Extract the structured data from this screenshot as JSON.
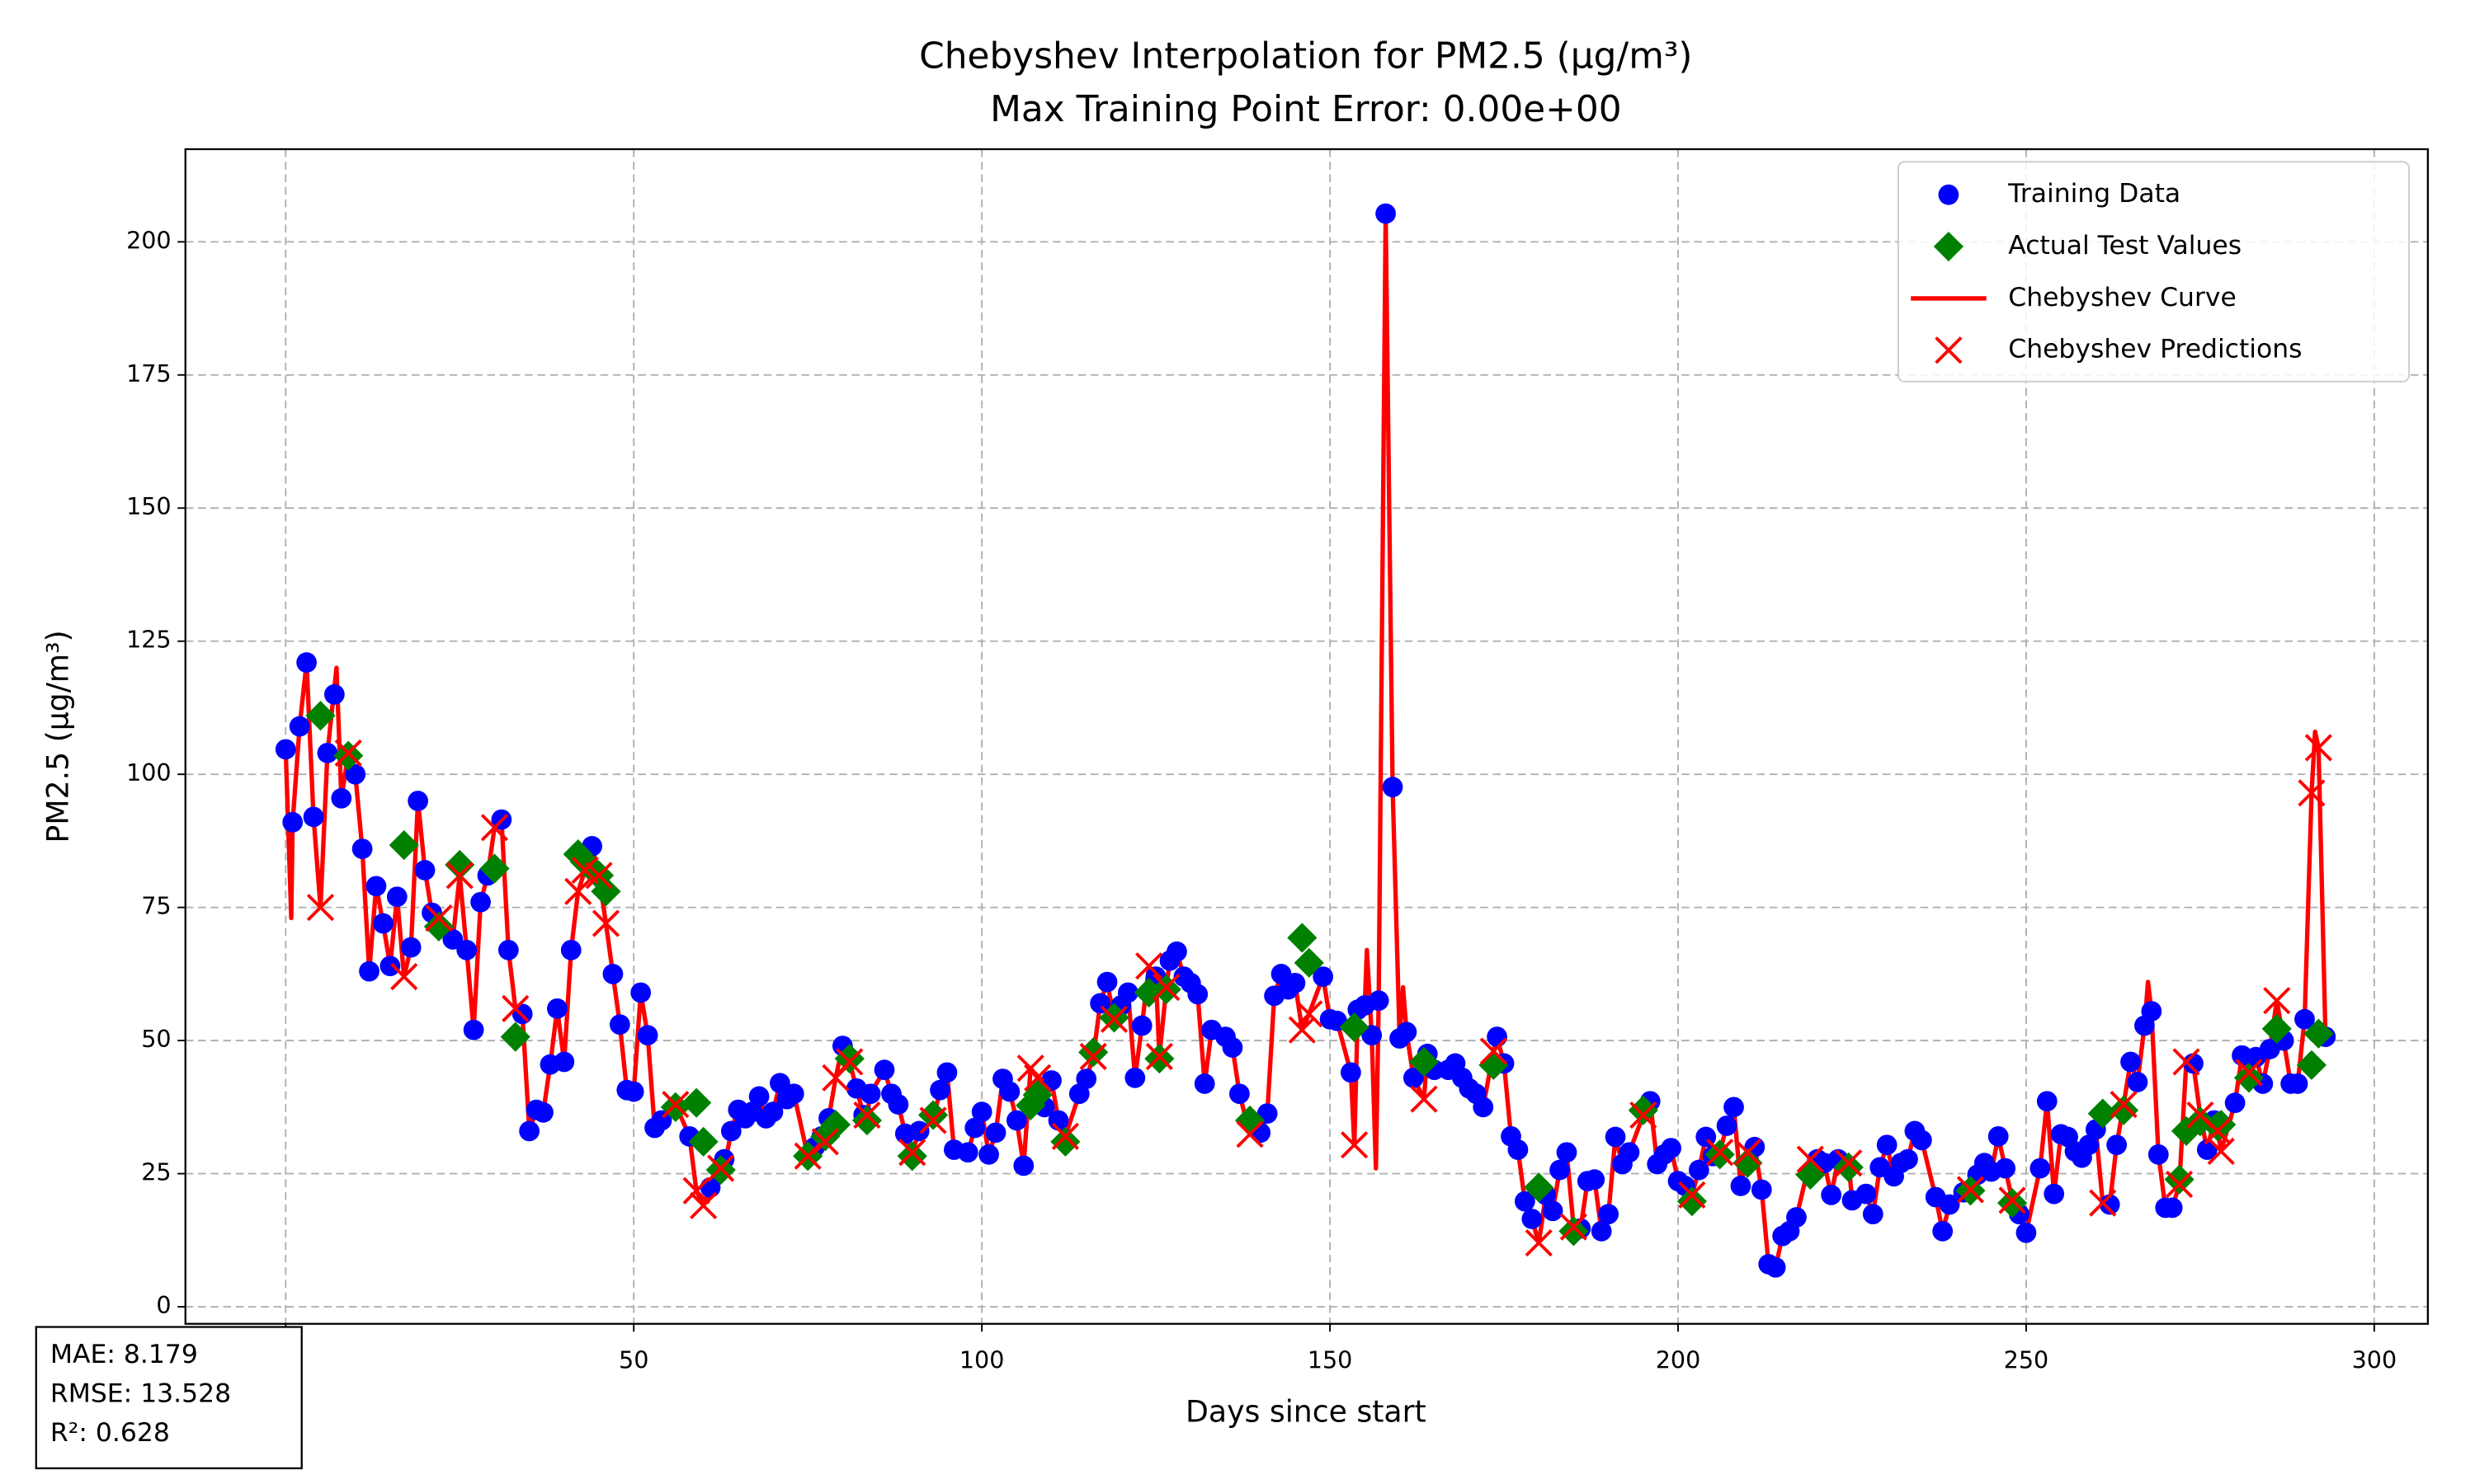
{
  "chart_data": {
    "type": "line",
    "title": "Chebyshev Interpolation for PM2.5 (µg/m³)",
    "subtitle": "Max Training Point Error: 0.00e+00",
    "x_label": "Days since start",
    "y_label": "PM2.5 (µg/m³)",
    "xlim": [
      -14.4,
      307.7
    ],
    "ylim": [
      -3.2,
      217.4
    ],
    "xticks": [
      0,
      50,
      100,
      150,
      200,
      250,
      300
    ],
    "yticks": [
      0,
      25,
      50,
      75,
      100,
      125,
      150,
      175,
      200
    ],
    "grid": true,
    "legend": "upper right",
    "annotations": [
      "MAE: 8.179",
      "RMSE: 13.528",
      "R²: 0.628"
    ],
    "series": [
      {
        "name": "Training Data",
        "color": "#0000ff",
        "marker": "o",
        "x": [
          0,
          1,
          2,
          3,
          4,
          6,
          7,
          8,
          10,
          11,
          12,
          13,
          14,
          15,
          16,
          18,
          19,
          20,
          21,
          24,
          26,
          27,
          28,
          29,
          31,
          32,
          34,
          35,
          36,
          37,
          38,
          39,
          40,
          41,
          44,
          47,
          48,
          49,
          50,
          51,
          52,
          53,
          54,
          58,
          61,
          63,
          64,
          65,
          66,
          67,
          68,
          69,
          70,
          71,
          72,
          73,
          76,
          77,
          78,
          80,
          82,
          83,
          84,
          86,
          87,
          88,
          89,
          91,
          94,
          95,
          96,
          98,
          99,
          100,
          101,
          102,
          103,
          104,
          105,
          106,
          109,
          110,
          111,
          114,
          115,
          117,
          118,
          120,
          121,
          122,
          123,
          125,
          127,
          128,
          129,
          130,
          131,
          132,
          133,
          135,
          136,
          137,
          139,
          140,
          141,
          142,
          143,
          144,
          145,
          149,
          150,
          151,
          153,
          154,
          155,
          156,
          157,
          158,
          159,
          160,
          161,
          162,
          164,
          165,
          167,
          168,
          169,
          170,
          171,
          172,
          174,
          175,
          176,
          177,
          178,
          179,
          181,
          182,
          183,
          184,
          186,
          187,
          188,
          189,
          190,
          191,
          192,
          193,
          196,
          197,
          198,
          199,
          200,
          201,
          203,
          204,
          205,
          207,
          208,
          209,
          211,
          212,
          213,
          214,
          215,
          216,
          217,
          220,
          221,
          222,
          223,
          225,
          227,
          228,
          229,
          230,
          231,
          232,
          233,
          234,
          235,
          237,
          238,
          239,
          241,
          243,
          244,
          245,
          246,
          247,
          249,
          250,
          252,
          253,
          254,
          255,
          256,
          257,
          258,
          259,
          260,
          262,
          263,
          265,
          266,
          267,
          268,
          269,
          270,
          271,
          274,
          276,
          277,
          280,
          281,
          283,
          284,
          285,
          287,
          288,
          289,
          290,
          293
        ],
        "values": [
          104.7,
          91,
          109,
          121,
          92,
          104,
          115,
          95.5,
          100,
          86,
          63,
          79,
          72,
          64,
          77,
          67.5,
          95,
          82,
          74,
          69,
          67,
          52,
          76,
          81,
          91.5,
          67,
          55,
          33,
          37,
          36.5,
          45.5,
          56,
          46,
          67,
          86.5,
          62.5,
          53,
          40.7,
          40.4,
          59,
          51,
          33.6,
          35,
          32,
          22.4,
          27.7,
          33,
          37,
          35.4,
          36.6,
          39.5,
          35.4,
          36.6,
          42,
          39,
          40,
          30,
          32,
          35.4,
          49,
          41,
          36,
          40,
          44.5,
          40,
          38,
          32.5,
          33,
          40.7,
          44,
          29.5,
          29,
          33.6,
          36.6,
          28.6,
          32.7,
          42.8,
          40.4,
          35,
          26.5,
          37.5,
          42.5,
          35,
          40,
          42.8,
          57,
          61,
          56.6,
          59,
          43,
          52.8,
          62,
          65,
          66.7,
          62,
          60.8,
          58.7,
          41.9,
          52,
          50.7,
          48.7,
          40,
          34.5,
          32.7,
          36.3,
          58.4,
          62.5,
          59.6,
          60.8,
          62,
          54,
          53.7,
          44,
          55.8,
          56.6,
          51,
          57.5,
          205.3,
          97.6,
          50.4,
          51.6,
          43,
          47.5,
          44.5,
          44.5,
          45.7,
          43,
          41,
          40,
          37.5,
          50.7,
          45.7,
          32,
          29.5,
          19.8,
          16.5,
          21,
          18,
          25.7,
          29,
          14.7,
          23.6,
          23.9,
          14.2,
          17.4,
          31.9,
          26.8,
          29,
          38.6,
          26.8,
          28.6,
          29.8,
          23.6,
          22.7,
          25.7,
          31.9,
          28.3,
          34,
          37.5,
          22.7,
          30,
          22,
          8,
          7.4,
          13.3,
          14.2,
          16.8,
          27.7,
          27,
          21,
          27.7,
          20,
          21.2,
          17.4,
          26.2,
          30.4,
          24.5,
          27,
          27.7,
          33,
          31.3,
          20.6,
          14.2,
          19.2,
          21.5,
          24.8,
          27,
          25.4,
          32,
          26,
          17.4,
          13.9,
          26,
          38.6,
          21.2,
          32.4,
          31.9,
          29.2,
          28,
          30.4,
          33.3,
          19.2,
          30.4,
          46,
          42.2,
          52.8,
          55.5,
          28.6,
          18.6,
          18.6,
          45.7,
          29.5,
          35,
          38.3,
          47.2,
          46.9,
          41.9,
          48.4,
          50,
          41.9,
          41.9,
          54,
          50.7
        ]
      },
      {
        "name": "Actual Test Values",
        "color": "#008000",
        "marker": "D",
        "x": [
          5,
          9,
          17,
          22,
          25,
          30,
          33,
          42,
          43,
          45,
          46,
          56,
          59,
          60,
          62.5,
          75,
          77.5,
          79,
          81,
          83.5,
          90,
          93,
          107,
          108,
          112,
          116,
          119,
          124,
          125.5,
          126.5,
          138.5,
          146,
          147,
          153.5,
          163.5,
          173.5,
          180,
          185,
          195,
          202,
          206,
          210,
          219,
          224.5,
          242,
          248,
          261,
          264,
          272,
          273,
          275,
          277.5,
          278,
          282,
          286,
          291,
          292
        ],
        "values": [
          111,
          103.5,
          86.7,
          71.4,
          83,
          82.3,
          50.7,
          85,
          83.5,
          81,
          78,
          37.5,
          38.3,
          31,
          25.7,
          28.3,
          32,
          34.2,
          46.6,
          35,
          28.3,
          36,
          37.8,
          39.8,
          31,
          47.8,
          54.3,
          59,
          46.6,
          59.6,
          35,
          69.3,
          64.6,
          52.5,
          46,
          45.4,
          22.4,
          14.2,
          36.9,
          19.8,
          28.6,
          27,
          24.8,
          26.2,
          21.8,
          19.5,
          36.3,
          36.9,
          23.9,
          33,
          34.8,
          33.9,
          34.2,
          43,
          52.2,
          45.4,
          51.3
        ]
      },
      {
        "name": "Chebyshev Curve",
        "color": "#ff0000",
        "marker": null,
        "x": [
          0,
          0.8,
          1,
          2,
          3,
          4,
          5,
          6,
          7.3,
          8,
          9,
          10,
          11,
          12,
          13,
          14,
          15,
          16,
          17,
          18,
          19,
          20,
          21,
          22,
          24,
          25,
          26,
          27,
          28,
          29,
          30,
          31,
          32,
          33,
          34,
          35,
          36,
          37,
          38,
          39,
          40,
          41,
          42,
          43,
          44,
          45,
          46,
          47,
          48,
          49,
          50,
          51,
          52,
          53,
          54,
          56,
          58,
          59,
          60,
          61,
          63,
          64,
          65,
          66,
          67,
          68,
          69,
          70,
          71,
          72,
          73,
          75,
          76,
          77,
          77.5,
          78,
          79,
          80,
          81,
          82,
          83,
          83.5,
          84,
          86,
          87,
          88,
          89,
          90,
          91,
          93,
          94,
          95,
          96,
          98,
          99,
          100,
          101,
          102,
          103,
          104,
          105,
          106,
          107,
          108,
          109,
          110,
          111,
          112,
          114,
          115,
          116,
          117,
          118,
          119,
          120,
          121,
          122,
          123,
          124,
          125,
          125.5,
          126.5,
          127,
          128,
          129,
          130,
          131,
          132,
          133,
          135,
          136,
          137,
          138.5,
          139,
          140,
          141,
          142,
          143,
          144,
          145,
          146,
          147,
          149,
          150,
          151,
          153,
          153.5,
          154,
          155,
          155.3,
          156,
          156.6,
          157,
          158,
          159,
          160,
          160.5,
          161,
          162,
          163.5,
          164,
          165,
          167,
          168,
          169,
          170,
          171,
          172,
          173.5,
          174,
          175,
          176,
          177,
          178,
          179,
          180,
          181,
          182,
          183,
          184,
          185,
          186,
          187,
          188,
          189,
          190,
          191,
          192,
          193,
          195,
          196,
          197,
          198,
          199,
          200,
          201,
          202,
          203,
          204,
          205,
          206,
          207,
          208,
          209,
          210,
          211,
          212,
          213,
          214,
          215,
          216,
          217,
          219,
          220,
          221,
          222,
          223,
          224.5,
          225,
          227,
          228,
          229,
          230,
          231,
          232,
          233,
          234,
          235,
          237,
          238,
          239,
          241,
          242,
          243,
          244,
          245,
          246,
          247,
          248,
          249,
          250,
          252,
          253,
          254,
          255,
          256,
          257,
          258,
          259,
          260,
          261,
          262,
          263,
          264,
          265,
          266,
          267,
          267.5,
          268,
          269,
          270,
          271,
          272,
          273,
          274,
          275,
          276,
          277,
          277.5,
          278,
          280,
          281,
          282,
          283,
          284,
          285,
          286,
          287,
          288,
          289,
          290,
          291,
          291.5,
          292,
          293
        ],
        "values": [
          104.7,
          73,
          91,
          109,
          121,
          92,
          75,
          104,
          120,
          95.5,
          104,
          100,
          86,
          63,
          79,
          72,
          64,
          77,
          62,
          67.5,
          95,
          82,
          74,
          73,
          69,
          81,
          67,
          52,
          76,
          81,
          90,
          91.5,
          67,
          56,
          55,
          33,
          37,
          36.5,
          45.5,
          56,
          46,
          67,
          78,
          82,
          86.5,
          81,
          72,
          62.5,
          53,
          40.7,
          40.4,
          59,
          51,
          33.6,
          35,
          38,
          32,
          21.8,
          19,
          22.4,
          26,
          33,
          37,
          35.4,
          36.6,
          39.5,
          35.4,
          36.6,
          42,
          39,
          40,
          28.3,
          30,
          32,
          31,
          35.4,
          43,
          49,
          46,
          41,
          36,
          36,
          40,
          44.5,
          40,
          38,
          32.5,
          29,
          33,
          35,
          40.7,
          44,
          29.5,
          29,
          33.6,
          36.6,
          28.6,
          32.7,
          42.8,
          40.4,
          35,
          26.5,
          44.8,
          43,
          37.5,
          42.5,
          35,
          32,
          40,
          42.8,
          47,
          57,
          61,
          54,
          56.6,
          59,
          43,
          52.8,
          64,
          62,
          47,
          60,
          65,
          66.7,
          62,
          60.8,
          58.7,
          41.9,
          52,
          50.7,
          48.7,
          40,
          32.4,
          34.5,
          32.7,
          36.3,
          58.4,
          62.5,
          59.6,
          60.8,
          52,
          55,
          62,
          54,
          53.7,
          44,
          30.4,
          55.8,
          56.6,
          67,
          51,
          26,
          57.5,
          205.3,
          97.6,
          50.4,
          60,
          51.6,
          43,
          39,
          47.5,
          44.5,
          44.5,
          45.7,
          43,
          41,
          40,
          37.5,
          48,
          50.7,
          45.7,
          32,
          29.5,
          19.8,
          16.5,
          12,
          21,
          18,
          25.7,
          29,
          15,
          14.7,
          23.6,
          23.9,
          14.2,
          17.4,
          31.9,
          26.8,
          29,
          36,
          38.6,
          26.8,
          28.6,
          29.8,
          23.6,
          22.7,
          21,
          25.7,
          31.9,
          28.3,
          29,
          34,
          37.5,
          22.7,
          29,
          30,
          22,
          8,
          7.4,
          13.3,
          14.2,
          16.8,
          27.7,
          27.7,
          27,
          21,
          27.7,
          27,
          20,
          21.2,
          17.4,
          26.2,
          30.4,
          24.5,
          27,
          27.7,
          33,
          31.3,
          20.6,
          14.2,
          19.2,
          21.5,
          22,
          24.8,
          27,
          25.4,
          32,
          26,
          20,
          17.4,
          13.9,
          26,
          38.6,
          21.2,
          32.4,
          31.9,
          29.2,
          28,
          30.4,
          33.3,
          19.5,
          19.2,
          30.4,
          38,
          46,
          42.2,
          52.8,
          61,
          55.5,
          28.6,
          18.6,
          18.6,
          23,
          46,
          45.7,
          36,
          29.5,
          35,
          33,
          29.2,
          38.3,
          47.2,
          44,
          46.9,
          41.9,
          48.4,
          57.5,
          50,
          41.9,
          41.9,
          54,
          96.5,
          108,
          105,
          50.7
        ]
      },
      {
        "name": "Chebyshev Predictions",
        "color": "#ff0000",
        "marker": "x",
        "x": [
          5,
          9,
          17,
          22,
          25,
          30,
          33,
          42,
          43,
          45,
          46,
          56,
          59,
          60,
          62.5,
          75,
          77.5,
          79,
          81,
          83.5,
          90,
          93,
          107,
          108,
          112,
          116,
          119,
          124,
          125.5,
          126.5,
          138.5,
          146,
          147,
          153.5,
          163.5,
          173.5,
          180,
          185,
          195,
          202,
          206,
          210,
          219,
          224.5,
          242,
          248,
          261,
          264,
          272,
          273,
          275,
          277.5,
          278,
          282,
          286,
          291,
          292
        ],
        "values": [
          75,
          104,
          62,
          73,
          81,
          90,
          56,
          78,
          82,
          81,
          72,
          38,
          21.8,
          19,
          26,
          28.3,
          31,
          43,
          46,
          36,
          29,
          35,
          44.8,
          43,
          32,
          47,
          54,
          64,
          47,
          60,
          32.4,
          52,
          55,
          30.4,
          39,
          48,
          12,
          15,
          36,
          21,
          29,
          29,
          27.7,
          27,
          22,
          20,
          19.5,
          38,
          23,
          46,
          36,
          33,
          29.2,
          44,
          57.5,
          96.5,
          105
        ]
      }
    ]
  }
}
